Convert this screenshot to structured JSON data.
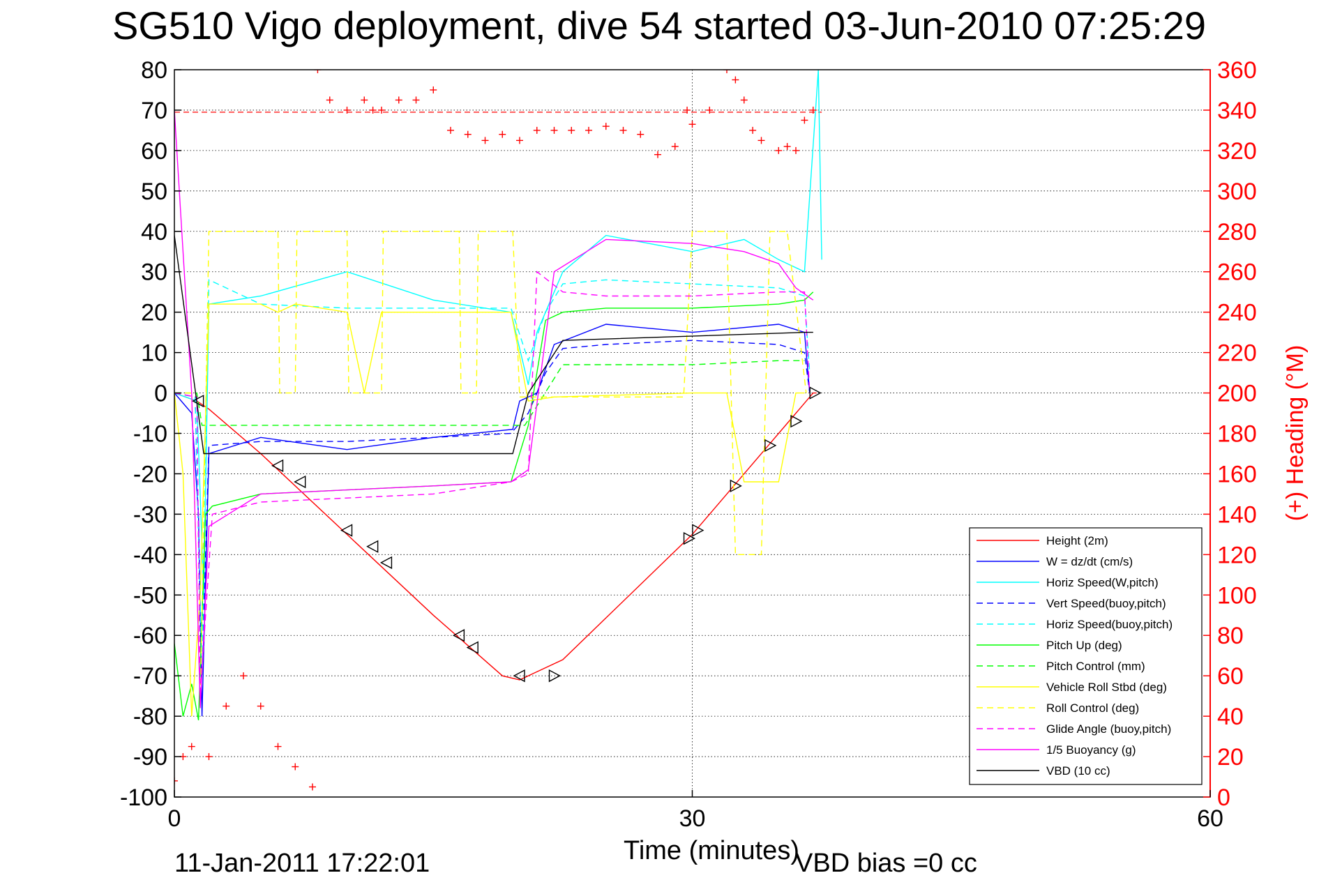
{
  "chart_data": {
    "type": "line",
    "title": "SG510 Vigo deployment, dive 54 started 03-Jun-2010 07:25:29",
    "xlabel": "Time (minutes)",
    "ylabel_right": "(+) Heading (°M)",
    "xlim": [
      0,
      60
    ],
    "ylim_left": [
      -100,
      80
    ],
    "ylim_right": [
      0,
      360
    ],
    "xticks": [
      "0",
      "30",
      "60"
    ],
    "yticks_left": [
      "80",
      "70",
      "60",
      "50",
      "40",
      "30",
      "20",
      "10",
      "0",
      "-10",
      "-20",
      "-30",
      "-40",
      "-50",
      "-60",
      "-70",
      "-80",
      "-90",
      "-100"
    ],
    "yticks_right": [
      "360",
      "340",
      "320",
      "300",
      "280",
      "260",
      "240",
      "220",
      "200",
      "180",
      "160",
      "140",
      "120",
      "100",
      "80",
      "60",
      "40",
      "20",
      "0"
    ],
    "grid": "dotted",
    "legend_position": "bottom-right",
    "footer_left": "11-Jan-2011 17:22:01",
    "footer_right": "VBD bias =0 cc",
    "heading_target": 339,
    "series": [
      {
        "name": "Height (2m)",
        "color": "#ff0000",
        "style": "solid",
        "x": [
          0,
          1.3,
          2,
          5,
          10,
          15,
          19,
          20,
          22.5,
          30,
          37,
          37.2
        ],
        "y": [
          0,
          -2,
          -4,
          -15,
          -35,
          -55,
          -70,
          -71,
          -66,
          -35,
          0,
          0
        ]
      },
      {
        "name": "W = dz/dt (cm/s)",
        "color": "#0000ff",
        "style": "solid",
        "x": [
          0,
          1,
          1.4,
          1.6,
          2,
          5,
          10,
          15,
          19.6,
          20,
          21,
          22,
          25,
          30,
          35,
          36.5,
          36.8
        ],
        "y": [
          0,
          -5,
          -30,
          -80,
          -15,
          -11,
          -14,
          -11,
          -9,
          -2,
          0,
          12,
          17,
          15,
          17,
          15,
          0
        ]
      },
      {
        "name": "Horiz Speed(W,pitch)",
        "color": "#00ffff",
        "style": "solid",
        "x": [
          0,
          1.3,
          1.7,
          2,
          5,
          10,
          15,
          19.5,
          20.5,
          21,
          22.5,
          25,
          30,
          33,
          35,
          36.5,
          37.3,
          37.5
        ],
        "y": [
          0,
          -2,
          -50,
          22,
          24,
          30,
          23,
          20,
          2,
          15,
          30,
          39,
          35,
          38,
          33,
          30,
          80,
          33
        ]
      },
      {
        "name": "Vert Speed(buoy,pitch)",
        "color": "#0000ff",
        "style": "dashed",
        "x": [
          0,
          1.2,
          1.6,
          2,
          5,
          10,
          15,
          19.5,
          20.5,
          21.5,
          22.5,
          25,
          30,
          35,
          36.5,
          36.8
        ],
        "y": [
          0,
          -1,
          -70,
          -13,
          -12,
          -12,
          -11,
          -10,
          -5,
          5,
          11,
          12,
          13,
          12,
          10,
          0
        ]
      },
      {
        "name": "Horiz Speed(buoy,pitch)",
        "color": "#00ffff",
        "style": "dashed",
        "x": [
          0,
          1.2,
          1.6,
          2,
          5,
          10,
          15,
          19.5,
          20.5,
          21.5,
          22.5,
          25,
          30,
          35,
          36.5,
          36.8
        ],
        "y": [
          0,
          -1,
          -70,
          28,
          22,
          21,
          21,
          21,
          8,
          20,
          27,
          28,
          27,
          26,
          24,
          5
        ]
      },
      {
        "name": "Pitch Up (deg)",
        "color": "#00ff00",
        "style": "solid",
        "x": [
          0,
          0.5,
          1,
          1.4,
          1.8,
          2.2,
          5,
          10,
          15,
          19.5,
          20.5,
          21.5,
          22.5,
          25,
          30,
          35,
          36.5,
          37
        ],
        "y": [
          -62,
          -80,
          -72,
          -81,
          -30,
          -28,
          -25,
          -24,
          -23,
          -22,
          -8,
          18,
          20,
          21,
          21,
          22,
          23,
          25
        ]
      },
      {
        "name": "Pitch Control (mm)",
        "color": "#00ff00",
        "style": "dashed",
        "x": [
          0,
          1.3,
          1.6,
          5,
          10,
          15,
          19.5,
          20.3,
          22.5,
          25,
          30,
          35,
          36.5
        ],
        "y": [
          0,
          0,
          -8,
          -8,
          -8,
          -8,
          -8,
          -8,
          7,
          7,
          7,
          8,
          8
        ]
      },
      {
        "name": "Vehicle Roll Stbd (deg)",
        "color": "#ffff00",
        "style": "solid",
        "x": [
          0,
          0.5,
          1,
          1.5,
          2,
          5,
          6,
          7,
          10,
          11,
          12,
          15,
          17,
          19.5,
          20.5,
          22,
          30,
          32,
          33,
          35,
          36,
          36.5
        ],
        "y": [
          0,
          -20,
          -80,
          -50,
          22,
          22,
          20,
          22,
          20,
          0,
          20,
          20,
          20,
          20,
          -2,
          -1,
          0,
          0,
          -22,
          -22,
          0,
          0
        ]
      },
      {
        "name": "Roll Control (deg)",
        "color": "#ffff00",
        "style": "dashed",
        "x": [
          0,
          1,
          1.5,
          2,
          6,
          6.1,
          7,
          7.1,
          10,
          10.1,
          12,
          12.1,
          16.5,
          16.6,
          17.5,
          17.6,
          19.6,
          20,
          29.5,
          30,
          32,
          32.5,
          34,
          34.5,
          35.5,
          36.6
        ],
        "y": [
          0,
          0,
          -78,
          40,
          40,
          0,
          0,
          40,
          40,
          0,
          0,
          40,
          40,
          0,
          0,
          40,
          40,
          -1,
          -1,
          40,
          40,
          -40,
          -40,
          40,
          40,
          0
        ]
      },
      {
        "name": "Glide Angle (buoy,pitch)",
        "color": "#ff00ff",
        "style": "dashed",
        "x": [
          0,
          1.3,
          1.5,
          2.2,
          5,
          10,
          15,
          19.5,
          20.5,
          21,
          22.5,
          25,
          30,
          35,
          36.5,
          36.8
        ],
        "y": [
          0,
          -1,
          -75,
          -30,
          -27,
          -26,
          -25,
          -22,
          -20,
          30,
          25,
          24,
          24,
          25,
          25,
          0
        ]
      },
      {
        "name": "1/5 Buoyancy (g)",
        "color": "#ff00ff",
        "style": "solid",
        "x": [
          0,
          1,
          1.5,
          2,
          5,
          10,
          15,
          19.5,
          20.5,
          22,
          25,
          30,
          33,
          35,
          36,
          37
        ],
        "y": [
          70,
          0,
          -78,
          -33,
          -25,
          -24,
          -23,
          -22,
          -19,
          30,
          38,
          37,
          35,
          32,
          26,
          23
        ]
      },
      {
        "name": "VBD (10 cc)",
        "color": "#000000",
        "style": "solid",
        "x": [
          0,
          1.7,
          19.6,
          20.5,
          22.5,
          36.5,
          37
        ],
        "y": [
          39,
          -15,
          -15,
          0,
          13,
          15,
          15
        ]
      }
    ],
    "heading": {
      "color": "#ff0000",
      "marker": "+",
      "x": [
        0,
        0.5,
        1,
        2,
        3,
        4,
        5,
        6,
        7,
        8,
        8.3,
        9,
        10,
        11,
        11.5,
        12,
        13,
        14,
        15,
        16,
        17,
        18,
        19,
        20,
        21,
        22,
        23,
        24,
        25,
        26,
        27,
        28,
        29,
        29.7,
        30,
        31,
        32,
        32.5,
        33,
        33.5,
        34,
        35,
        35.5,
        36,
        36.5,
        37
      ],
      "y": [
        8,
        20,
        25,
        20,
        45,
        60,
        45,
        25,
        15,
        5,
        360,
        345,
        340,
        345,
        340,
        340,
        345,
        345,
        350,
        330,
        328,
        325,
        328,
        325,
        330,
        330,
        330,
        330,
        332,
        330,
        328,
        318,
        322,
        340,
        333,
        340,
        360,
        355,
        345,
        330,
        325,
        320,
        322,
        320,
        335,
        340
      ]
    },
    "markers": {
      "x": [
        1.4,
        6,
        7.3,
        10,
        11.5,
        12.3,
        16.5,
        17.3,
        20,
        22,
        29.8,
        30.3,
        32.5,
        34.5,
        36,
        37.1
      ],
      "y": [
        -2,
        -18,
        -22,
        -34,
        -38,
        -42,
        -60,
        -63,
        -70,
        -70,
        -36,
        -34,
        -23,
        -13,
        -7,
        0
      ]
    }
  }
}
